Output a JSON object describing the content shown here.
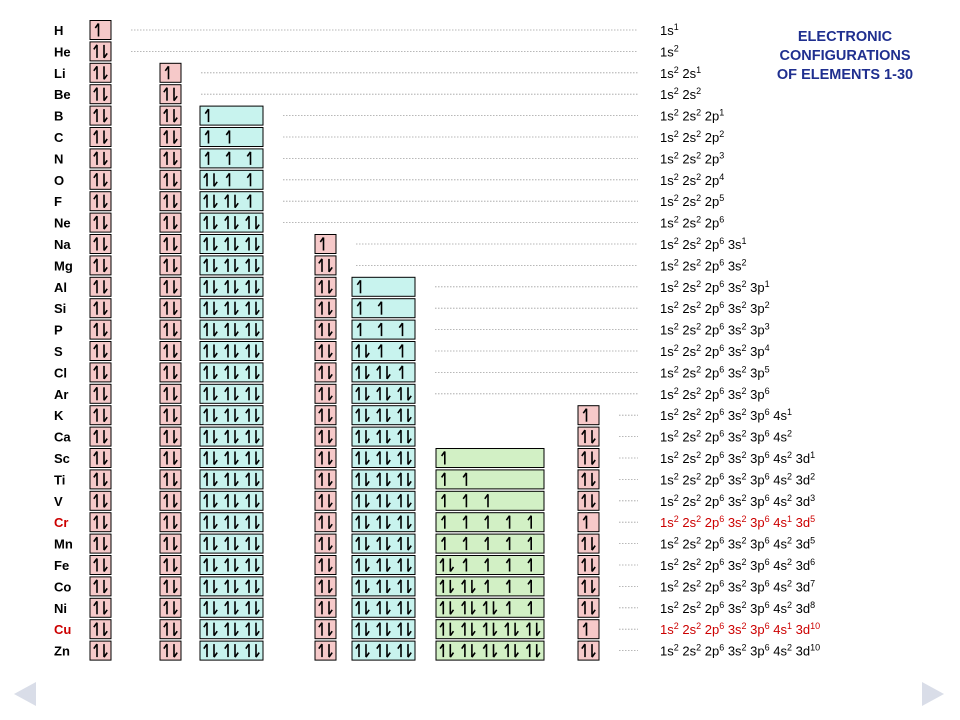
{
  "title_lines": [
    "ELECTRONIC",
    "CONFIGURATIONS",
    "OF ELEMENTS 1-30"
  ],
  "colors": {
    "orbital_1s": "#f6c9c9",
    "orbital_2s": "#f6c9c9",
    "orbital_2p": "#c8f3ee",
    "orbital_3s": "#f6c9c9",
    "orbital_3p": "#c8f3ee",
    "orbital_3d": "#d2f0c5",
    "orbital_4s": "#f6c9c9",
    "highlight_text": "#cc0000",
    "normal_text": "#000000",
    "leader_line": "#a0a0a0"
  },
  "subshells": [
    "1s",
    "2s",
    "2p",
    "3s",
    "3p",
    "3d",
    "4s"
  ],
  "elements": [
    {
      "symbol": "H",
      "config": [
        [
          "1s",
          "1"
        ]
      ],
      "highlight": false
    },
    {
      "symbol": "He",
      "config": [
        [
          "1s",
          "2"
        ]
      ],
      "highlight": false
    },
    {
      "symbol": "Li",
      "config": [
        [
          "1s",
          "2"
        ],
        [
          "2s",
          "1"
        ]
      ],
      "highlight": false
    },
    {
      "symbol": "Be",
      "config": [
        [
          "1s",
          "2"
        ],
        [
          "2s",
          "2"
        ]
      ],
      "highlight": false
    },
    {
      "symbol": "B",
      "config": [
        [
          "1s",
          "2"
        ],
        [
          "2s",
          "2"
        ],
        [
          "2p",
          "1"
        ]
      ],
      "highlight": false
    },
    {
      "symbol": "C",
      "config": [
        [
          "1s",
          "2"
        ],
        [
          "2s",
          "2"
        ],
        [
          "2p",
          "2"
        ]
      ],
      "highlight": false
    },
    {
      "symbol": "N",
      "config": [
        [
          "1s",
          "2"
        ],
        [
          "2s",
          "2"
        ],
        [
          "2p",
          "3"
        ]
      ],
      "highlight": false
    },
    {
      "symbol": "O",
      "config": [
        [
          "1s",
          "2"
        ],
        [
          "2s",
          "2"
        ],
        [
          "2p",
          "4"
        ]
      ],
      "highlight": false
    },
    {
      "symbol": "F",
      "config": [
        [
          "1s",
          "2"
        ],
        [
          "2s",
          "2"
        ],
        [
          "2p",
          "5"
        ]
      ],
      "highlight": false
    },
    {
      "symbol": "Ne",
      "config": [
        [
          "1s",
          "2"
        ],
        [
          "2s",
          "2"
        ],
        [
          "2p",
          "6"
        ]
      ],
      "highlight": false
    },
    {
      "symbol": "Na",
      "config": [
        [
          "1s",
          "2"
        ],
        [
          "2s",
          "2"
        ],
        [
          "2p",
          "6"
        ],
        [
          "3s",
          "1"
        ]
      ],
      "highlight": false
    },
    {
      "symbol": "Mg",
      "config": [
        [
          "1s",
          "2"
        ],
        [
          "2s",
          "2"
        ],
        [
          "2p",
          "6"
        ],
        [
          "3s",
          "2"
        ]
      ],
      "highlight": false
    },
    {
      "symbol": "Al",
      "config": [
        [
          "1s",
          "2"
        ],
        [
          "2s",
          "2"
        ],
        [
          "2p",
          "6"
        ],
        [
          "3s",
          "2"
        ],
        [
          "3p",
          "1"
        ]
      ],
      "highlight": false
    },
    {
      "symbol": "Si",
      "config": [
        [
          "1s",
          "2"
        ],
        [
          "2s",
          "2"
        ],
        [
          "2p",
          "6"
        ],
        [
          "3s",
          "2"
        ],
        [
          "3p",
          "2"
        ]
      ],
      "highlight": false
    },
    {
      "symbol": "P",
      "config": [
        [
          "1s",
          "2"
        ],
        [
          "2s",
          "2"
        ],
        [
          "2p",
          "6"
        ],
        [
          "3s",
          "2"
        ],
        [
          "3p",
          "3"
        ]
      ],
      "highlight": false
    },
    {
      "symbol": "S",
      "config": [
        [
          "1s",
          "2"
        ],
        [
          "2s",
          "2"
        ],
        [
          "2p",
          "6"
        ],
        [
          "3s",
          "2"
        ],
        [
          "3p",
          "4"
        ]
      ],
      "highlight": false
    },
    {
      "symbol": "Cl",
      "config": [
        [
          "1s",
          "2"
        ],
        [
          "2s",
          "2"
        ],
        [
          "2p",
          "6"
        ],
        [
          "3s",
          "2"
        ],
        [
          "3p",
          "5"
        ]
      ],
      "highlight": false
    },
    {
      "symbol": "Ar",
      "config": [
        [
          "1s",
          "2"
        ],
        [
          "2s",
          "2"
        ],
        [
          "2p",
          "6"
        ],
        [
          "3s",
          "2"
        ],
        [
          "3p",
          "6"
        ]
      ],
      "highlight": false
    },
    {
      "symbol": "K",
      "config": [
        [
          "1s",
          "2"
        ],
        [
          "2s",
          "2"
        ],
        [
          "2p",
          "6"
        ],
        [
          "3s",
          "2"
        ],
        [
          "3p",
          "6"
        ],
        [
          "4s",
          "1"
        ]
      ],
      "highlight": false
    },
    {
      "symbol": "Ca",
      "config": [
        [
          "1s",
          "2"
        ],
        [
          "2s",
          "2"
        ],
        [
          "2p",
          "6"
        ],
        [
          "3s",
          "2"
        ],
        [
          "3p",
          "6"
        ],
        [
          "4s",
          "2"
        ]
      ],
      "highlight": false
    },
    {
      "symbol": "Sc",
      "config": [
        [
          "1s",
          "2"
        ],
        [
          "2s",
          "2"
        ],
        [
          "2p",
          "6"
        ],
        [
          "3s",
          "2"
        ],
        [
          "3p",
          "6"
        ],
        [
          "4s",
          "2"
        ],
        [
          "3d",
          "1"
        ]
      ],
      "highlight": false
    },
    {
      "symbol": "Ti",
      "config": [
        [
          "1s",
          "2"
        ],
        [
          "2s",
          "2"
        ],
        [
          "2p",
          "6"
        ],
        [
          "3s",
          "2"
        ],
        [
          "3p",
          "6"
        ],
        [
          "4s",
          "2"
        ],
        [
          "3d",
          "2"
        ]
      ],
      "highlight": false
    },
    {
      "symbol": "V",
      "config": [
        [
          "1s",
          "2"
        ],
        [
          "2s",
          "2"
        ],
        [
          "2p",
          "6"
        ],
        [
          "3s",
          "2"
        ],
        [
          "3p",
          "6"
        ],
        [
          "4s",
          "2"
        ],
        [
          "3d",
          "3"
        ]
      ],
      "highlight": false
    },
    {
      "symbol": "Cr",
      "config": [
        [
          "1s",
          "2"
        ],
        [
          "2s",
          "2"
        ],
        [
          "2p",
          "6"
        ],
        [
          "3s",
          "2"
        ],
        [
          "3p",
          "6"
        ],
        [
          "4s",
          "1"
        ],
        [
          "3d",
          "5"
        ]
      ],
      "highlight": true
    },
    {
      "symbol": "Mn",
      "config": [
        [
          "1s",
          "2"
        ],
        [
          "2s",
          "2"
        ],
        [
          "2p",
          "6"
        ],
        [
          "3s",
          "2"
        ],
        [
          "3p",
          "6"
        ],
        [
          "4s",
          "2"
        ],
        [
          "3d",
          "5"
        ]
      ],
      "highlight": false
    },
    {
      "symbol": "Fe",
      "config": [
        [
          "1s",
          "2"
        ],
        [
          "2s",
          "2"
        ],
        [
          "2p",
          "6"
        ],
        [
          "3s",
          "2"
        ],
        [
          "3p",
          "6"
        ],
        [
          "4s",
          "2"
        ],
        [
          "3d",
          "6"
        ]
      ],
      "highlight": false
    },
    {
      "symbol": "Co",
      "config": [
        [
          "1s",
          "2"
        ],
        [
          "2s",
          "2"
        ],
        [
          "2p",
          "6"
        ],
        [
          "3s",
          "2"
        ],
        [
          "3p",
          "6"
        ],
        [
          "4s",
          "2"
        ],
        [
          "3d",
          "7"
        ]
      ],
      "highlight": false
    },
    {
      "symbol": "Ni",
      "config": [
        [
          "1s",
          "2"
        ],
        [
          "2s",
          "2"
        ],
        [
          "2p",
          "6"
        ],
        [
          "3s",
          "2"
        ],
        [
          "3p",
          "6"
        ],
        [
          "4s",
          "2"
        ],
        [
          "3d",
          "8"
        ]
      ],
      "highlight": false
    },
    {
      "symbol": "Cu",
      "config": [
        [
          "1s",
          "2"
        ],
        [
          "2s",
          "2"
        ],
        [
          "2p",
          "6"
        ],
        [
          "3s",
          "2"
        ],
        [
          "3p",
          "6"
        ],
        [
          "4s",
          "1"
        ],
        [
          "3d",
          "10"
        ]
      ],
      "highlight": true
    },
    {
      "symbol": "Zn",
      "config": [
        [
          "1s",
          "2"
        ],
        [
          "2s",
          "2"
        ],
        [
          "2p",
          "6"
        ],
        [
          "3s",
          "2"
        ],
        [
          "3p",
          "6"
        ],
        [
          "4s",
          "2"
        ],
        [
          "3d",
          "10"
        ]
      ],
      "highlight": false
    }
  ]
}
